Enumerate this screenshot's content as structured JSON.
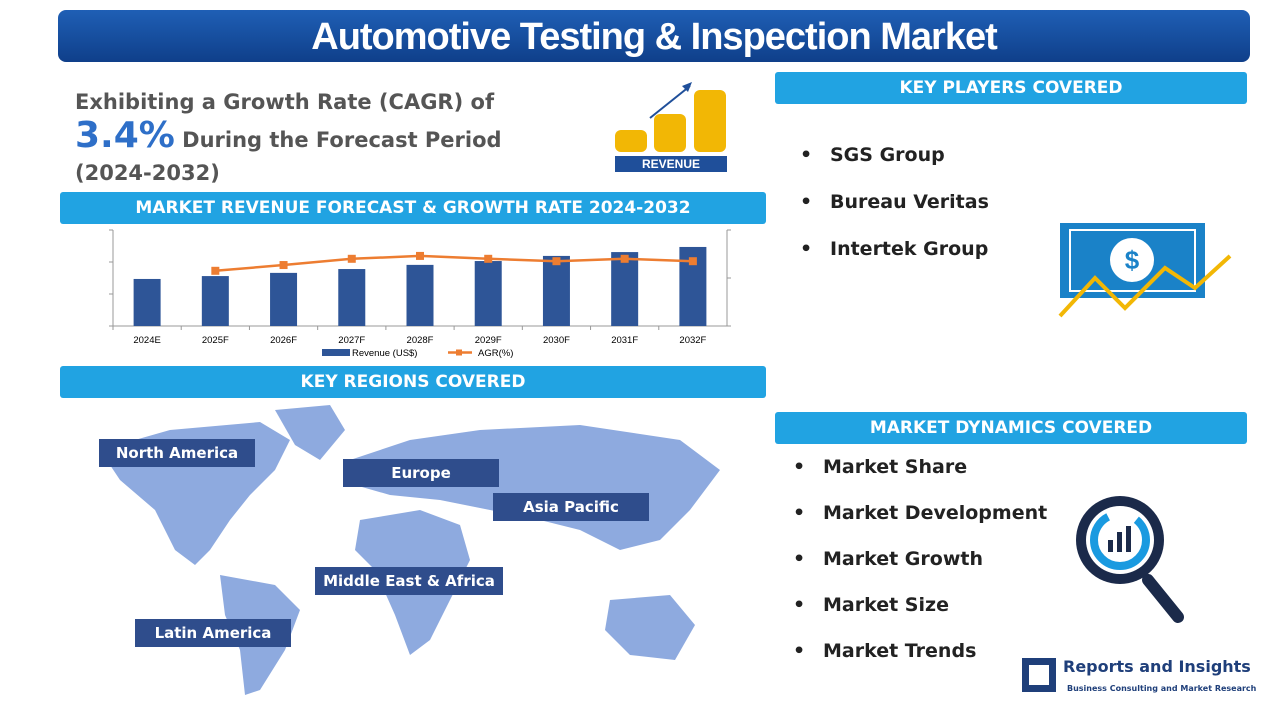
{
  "header": {
    "title": "Automotive Testing & Inspection Market"
  },
  "cagr": {
    "prefix": "Exhibiting a Growth Rate (CAGR) of",
    "value": "3.4%",
    "suffix": "During the Forecast Period (2024-2032)"
  },
  "icon_label": "REVENUE",
  "chart_data": {
    "type": "bar",
    "title": "MARKET REVENUE FORECAST & GROWTH RATE 2024-2032",
    "categories": [
      "2024E",
      "2025F",
      "2026F",
      "2027F",
      "2028F",
      "2029F",
      "2030F",
      "2031F",
      "2032F"
    ],
    "series": [
      {
        "name": "Revenue (US$)",
        "type": "bar",
        "color": "#2e5597",
        "values": [
          1.47,
          1.56,
          1.66,
          1.78,
          1.91,
          2.03,
          2.19,
          2.31,
          2.47
        ]
      },
      {
        "name": "AGR(%)",
        "type": "line",
        "axis": "y2",
        "color": "#ed7d31",
        "values": [
          null,
          1.15,
          1.27,
          1.4,
          1.46,
          1.4,
          1.35,
          1.4,
          1.35
        ]
      }
    ],
    "ylim": [
      0,
      3
    ],
    "yticks": [
      0,
      1,
      2,
      3
    ],
    "y2lim": [
      0,
      2
    ],
    "y2ticks": [
      0,
      1,
      2
    ]
  },
  "key_regions": {
    "title": "KEY REGIONS COVERED",
    "items": [
      "North America",
      "Europe",
      "Asia Pacific",
      "Middle East & Africa",
      "Latin America"
    ]
  },
  "key_players": {
    "title": "KEY PLAYERS COVERED",
    "items": [
      "SGS Group",
      "Bureau Veritas",
      "Intertek Group"
    ]
  },
  "market_dynamics": {
    "title": "MARKET DYNAMICS COVERED",
    "items": [
      "Market Share",
      "Market Development",
      "Market Growth",
      "Market Size",
      "Market Trends"
    ]
  },
  "brand": {
    "name": "Reports and Insights",
    "tagline": "Business Consulting and Market Research"
  }
}
